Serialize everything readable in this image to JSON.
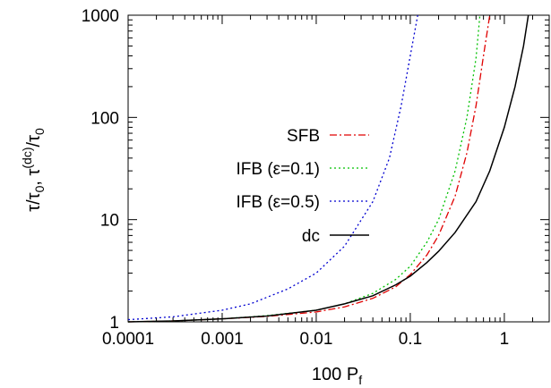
{
  "chart_data": {
    "type": "line",
    "xlabel": "100 P",
    "xlabel_sub": "f",
    "ylabel": [
      {
        "t": "τ",
        "sub": false,
        "sup": false
      },
      {
        "t": "/τ",
        "sub": false,
        "sup": false
      },
      {
        "t": "0",
        "sub": true,
        "sup": false
      },
      {
        "t": ", τ",
        "sub": false,
        "sup": false
      },
      {
        "t": "(dc)",
        "sub": false,
        "sup": true
      },
      {
        "t": "/τ",
        "sub": false,
        "sup": false
      },
      {
        "t": "0",
        "sub": true,
        "sup": false
      }
    ],
    "x_scale": "log",
    "y_scale": "log",
    "xlim": [
      0.0001,
      3
    ],
    "ylim": [
      1,
      1000
    ],
    "xticks": [
      {
        "value": 0.0001,
        "label": "0.0001"
      },
      {
        "value": 0.001,
        "label": "0.001"
      },
      {
        "value": 0.01,
        "label": "0.01"
      },
      {
        "value": 0.1,
        "label": "0.1"
      },
      {
        "value": 1,
        "label": "1"
      }
    ],
    "yticks": [
      {
        "value": 1,
        "label": "1"
      },
      {
        "value": 10,
        "label": "10"
      },
      {
        "value": 100,
        "label": "100"
      },
      {
        "value": 1000,
        "label": "1000"
      }
    ],
    "grid": false,
    "legend_position": "right",
    "series": [
      {
        "name": "SFB",
        "color": "#e00000",
        "dash": "dash-dot",
        "x": [
          0.0001,
          0.0003,
          0.001,
          0.003,
          0.01,
          0.02,
          0.04,
          0.07,
          0.1,
          0.15,
          0.2,
          0.3,
          0.4,
          0.5,
          0.6,
          0.7
        ],
        "y": [
          1.0,
          1.02,
          1.07,
          1.13,
          1.25,
          1.4,
          1.7,
          2.2,
          2.9,
          4.5,
          7.0,
          17,
          45,
          130,
          400,
          1000
        ]
      },
      {
        "name": "IFB (ε=0.1)",
        "color": "#00c000",
        "dash": "dot",
        "x": [
          0.0001,
          0.0003,
          0.001,
          0.003,
          0.01,
          0.02,
          0.04,
          0.07,
          0.1,
          0.15,
          0.2,
          0.3,
          0.4,
          0.5,
          0.55
        ],
        "y": [
          1.0,
          1.02,
          1.07,
          1.15,
          1.3,
          1.5,
          1.9,
          2.6,
          3.5,
          6.0,
          10,
          30,
          100,
          380,
          1000
        ]
      },
      {
        "name": "IFB (ε=0.5)",
        "color": "#0000d0",
        "dash": "dot",
        "x": [
          0.0001,
          0.0003,
          0.001,
          0.002,
          0.005,
          0.01,
          0.02,
          0.04,
          0.06,
          0.08,
          0.1,
          0.12
        ],
        "y": [
          1.05,
          1.12,
          1.3,
          1.5,
          2.1,
          3.0,
          5.5,
          15,
          40,
          130,
          400,
          1000
        ]
      },
      {
        "name": "dc",
        "color": "#000000",
        "dash": "solid",
        "x": [
          0.0001,
          0.0003,
          0.001,
          0.003,
          0.01,
          0.02,
          0.04,
          0.07,
          0.1,
          0.15,
          0.2,
          0.3,
          0.5,
          0.7,
          1.0,
          1.3,
          1.6,
          1.8
        ],
        "y": [
          1.0,
          1.02,
          1.07,
          1.14,
          1.3,
          1.5,
          1.8,
          2.3,
          2.8,
          3.8,
          4.9,
          7.5,
          15,
          30,
          80,
          200,
          500,
          1000
        ]
      }
    ]
  }
}
